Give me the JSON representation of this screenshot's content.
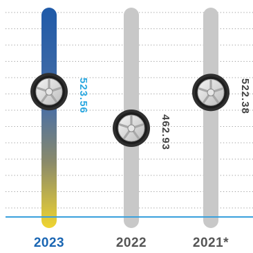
{
  "colors": {
    "highlight_label": "#1a66b3",
    "highlight_value": "#2ba8e0",
    "muted_label": "#555555",
    "muted_value": "#444444",
    "track_grey": "#c8c8c8",
    "gradient_top": "#1f5aa8",
    "gradient_bottom": "#f0d530",
    "baseline": "#3aa0dc",
    "grid": "#9a9a9a"
  },
  "icons": {
    "marker": "tire-wheel-icon"
  },
  "chart_data": {
    "type": "bar",
    "title": "",
    "xlabel": "",
    "ylabel": "",
    "categories": [
      "2023",
      "2022",
      "2021*"
    ],
    "values": [
      523.56,
      462.93,
      522.38
    ],
    "highlighted_category": "2023",
    "value_labels": [
      "523.56",
      "462.93",
      "522.38"
    ],
    "grid": true
  }
}
